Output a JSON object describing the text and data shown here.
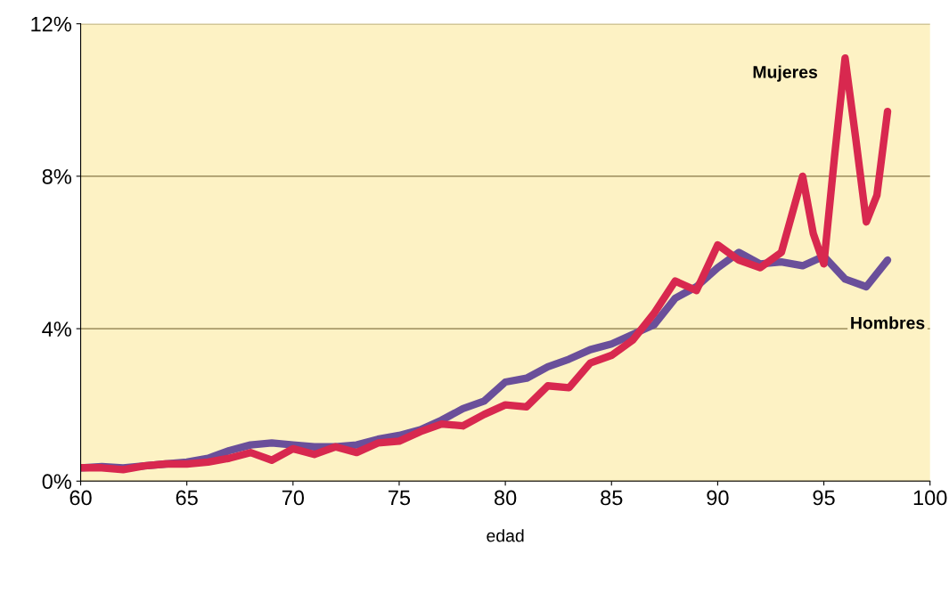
{
  "chart_data": {
    "type": "line",
    "xlabel": "edad",
    "xlim": [
      60,
      100
    ],
    "xticks": [
      60,
      65,
      70,
      75,
      80,
      85,
      90,
      95,
      100
    ],
    "ylim": [
      0,
      12
    ],
    "yticks": [
      {
        "value": 0,
        "label": "0%"
      },
      {
        "value": 4,
        "label": "4%"
      },
      {
        "value": 8,
        "label": "8%"
      },
      {
        "value": 12,
        "label": "12%"
      }
    ],
    "grid": "y",
    "legend": false,
    "series": [
      {
        "name": "Hombres",
        "color": "#6a4f9a",
        "x": [
          60,
          61,
          62,
          63,
          64,
          65,
          66,
          67,
          68,
          69,
          70,
          71,
          72,
          73,
          74,
          75,
          76,
          77,
          78,
          79,
          80,
          81,
          82,
          83,
          84,
          85,
          86,
          87,
          88,
          89,
          90,
          91,
          92,
          93,
          94,
          95,
          96,
          97,
          98
        ],
        "values": [
          0.35,
          0.38,
          0.35,
          0.4,
          0.45,
          0.5,
          0.6,
          0.8,
          0.95,
          1.0,
          0.95,
          0.9,
          0.9,
          0.95,
          1.1,
          1.2,
          1.35,
          1.6,
          1.9,
          2.1,
          2.6,
          2.7,
          3.0,
          3.2,
          3.45,
          3.6,
          3.85,
          4.1,
          4.8,
          5.1,
          5.6,
          6.0,
          5.7,
          5.75,
          5.65,
          5.9,
          5.3,
          5.1,
          5.8
        ]
      },
      {
        "name": "Mujeres",
        "color": "#d8284f",
        "x": [
          60,
          61,
          62,
          63,
          64,
          65,
          66,
          67,
          68,
          69,
          70,
          71,
          72,
          73,
          74,
          75,
          76,
          77,
          78,
          79,
          80,
          81,
          82,
          83,
          84,
          85,
          86,
          87,
          88,
          89,
          90,
          91,
          92,
          93,
          93.5,
          94,
          94.5,
          95,
          95.5,
          96,
          96.5,
          97,
          97.5,
          98
        ],
        "values": [
          0.35,
          0.35,
          0.3,
          0.4,
          0.45,
          0.45,
          0.5,
          0.6,
          0.75,
          0.55,
          0.85,
          0.7,
          0.9,
          0.75,
          1.0,
          1.05,
          1.3,
          1.5,
          1.45,
          1.75,
          2.0,
          1.95,
          2.5,
          2.45,
          3.1,
          3.3,
          3.7,
          4.4,
          5.25,
          5.0,
          6.2,
          5.8,
          5.6,
          6.0,
          7.0,
          8.0,
          6.5,
          5.7,
          8.5,
          11.1,
          9.0,
          6.8,
          7.5,
          9.7
        ]
      }
    ]
  }
}
